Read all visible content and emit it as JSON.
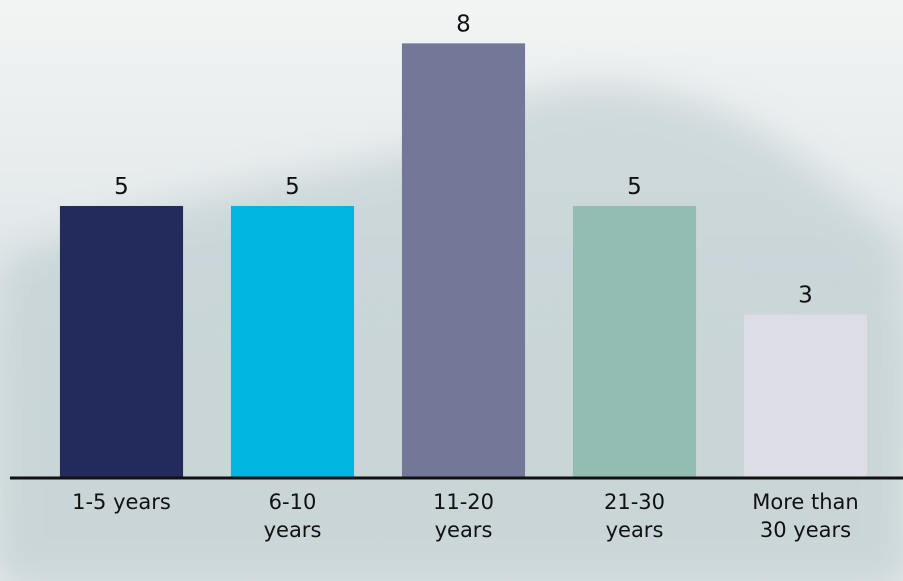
{
  "chart_data": {
    "type": "bar",
    "categories": [
      "1-5 years",
      "6-10 years",
      "11-20 years",
      "21-30 years",
      "More than 30 years"
    ],
    "values": [
      5,
      5,
      8,
      5,
      3
    ],
    "colors": [
      "#222b5c",
      "#00b5e0",
      "#737898",
      "#93bdb2",
      "#dcdde6"
    ],
    "ylim": [
      0,
      8.8
    ]
  }
}
